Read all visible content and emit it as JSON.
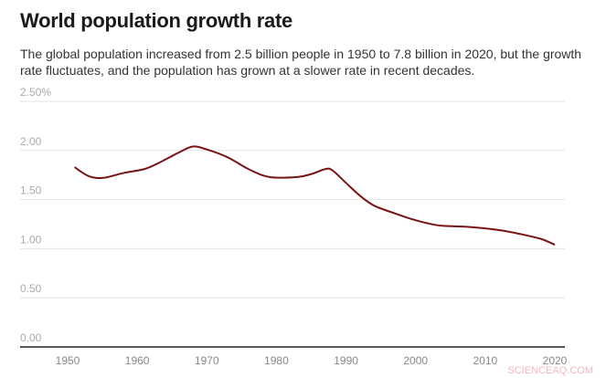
{
  "chart_data": {
    "type": "line",
    "title": "World population growth rate",
    "subtitle": "The global population increased from 2.5 billion people in 1950 to 7.8 billion in 2020, but the growth rate fluctuates, and the population has grown at a slower rate in recent decades.",
    "xlabel": "",
    "ylabel": "",
    "xlim": [
      1945,
      2022
    ],
    "ylim": [
      0,
      2.5
    ],
    "grid": true,
    "x_ticks": [
      "1950",
      "1960",
      "1970",
      "1980",
      "1990",
      "2000",
      "2010",
      "2020"
    ],
    "y_ticks": [
      "0.00",
      "0.50",
      "1.00",
      "1.50",
      "2.00",
      "2.50%"
    ],
    "line_color": "#7a1414",
    "series": [
      {
        "x": [
          1951,
          1953,
          1955,
          1958,
          1961,
          1963,
          1966,
          1968,
          1970,
          1973,
          1976,
          1979,
          1983,
          1985,
          1987,
          1988,
          1990,
          1992,
          1994,
          1997,
          2000,
          2003,
          2005,
          2008,
          2012,
          2015,
          2018,
          2020
        ],
        "y": [
          1.83,
          1.74,
          1.72,
          1.77,
          1.81,
          1.87,
          1.98,
          2.04,
          2.01,
          1.93,
          1.81,
          1.73,
          1.73,
          1.76,
          1.81,
          1.8,
          1.67,
          1.54,
          1.44,
          1.36,
          1.29,
          1.24,
          1.23,
          1.22,
          1.19,
          1.15,
          1.1,
          1.04
        ]
      }
    ]
  },
  "watermark": "SCIENCEAQ.COM"
}
